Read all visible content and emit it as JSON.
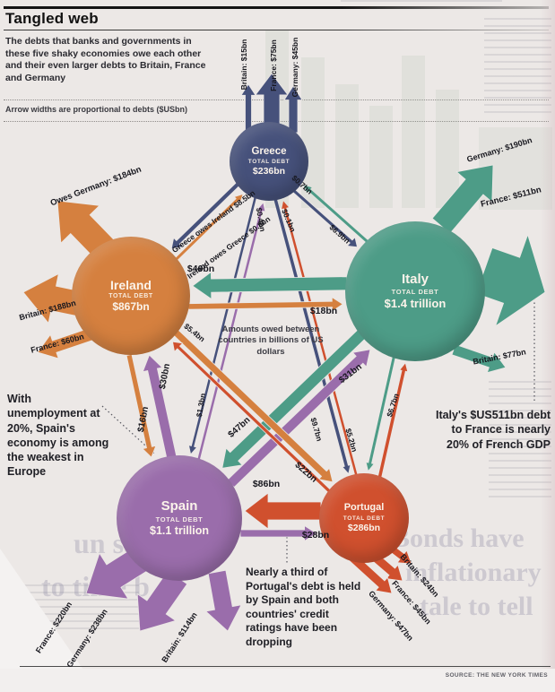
{
  "header": {
    "title": "Tangled web",
    "subtitle": "The debts that banks and governments in these five shaky economies owe each other and their even larger debts to Britain, France and Germany",
    "note": "Arrow widths are proportional to debts ($USbn)"
  },
  "center_note": "Amounts owed between countries in billions of US dollars",
  "annotations": {
    "spain": "With unemployment at 20%, Spain's economy is among the weakest in Europe",
    "italy": "Italy's $US511bn debt to France is nearly 20% of French GDP",
    "portugal": "Nearly a third of Portugal's debt is held by Spain and both countries' credit ratings have been dropping"
  },
  "source": "SOURCE: THE NEW YORK TIMES",
  "colors": {
    "greece": "#46517b",
    "ireland": "#d5803f",
    "italy": "#4d9c87",
    "spain": "#9a6dab",
    "portugal": "#d0502e",
    "paper": "#ece8e6"
  },
  "nodes": [
    {
      "id": "greece",
      "name": "Greece",
      "debt_label": "TOTAL DEBT",
      "total": "$236bn"
    },
    {
      "id": "ireland",
      "name": "Ireland",
      "debt_label": "TOTAL DEBT",
      "total": "$867bn"
    },
    {
      "id": "italy",
      "name": "Italy",
      "debt_label": "TOTAL DEBT",
      "total": "$1.4 trillion"
    },
    {
      "id": "spain",
      "name": "Spain",
      "debt_label": "TOTAL DEBT",
      "total": "$1.1 trillion"
    },
    {
      "id": "portugal",
      "name": "Portugal",
      "debt_label": "TOTAL DEBT",
      "total": "$286bn"
    }
  ],
  "external_debts": [
    {
      "from": "greece",
      "to": "britain",
      "label": "Britain: $15bn"
    },
    {
      "from": "greece",
      "to": "france",
      "label": "France: $75bn"
    },
    {
      "from": "greece",
      "to": "germany",
      "label": "Germany: $45bn"
    },
    {
      "from": "ireland",
      "to": "germany",
      "label": "Owes Germany: $184bn"
    },
    {
      "from": "ireland",
      "to": "britain",
      "label": "Britain: $188bn"
    },
    {
      "from": "ireland",
      "to": "france",
      "label": "France: $60bn"
    },
    {
      "from": "italy",
      "to": "germany",
      "label": "Germany: $190bn"
    },
    {
      "from": "italy",
      "to": "france",
      "label": "France: $511bn"
    },
    {
      "from": "italy",
      "to": "britain",
      "label": "Britain: $77bn"
    },
    {
      "from": "spain",
      "to": "france",
      "label": "France: $220bn"
    },
    {
      "from": "spain",
      "to": "germany",
      "label": "Germany: $238bn"
    },
    {
      "from": "spain",
      "to": "britain",
      "label": "Britain: $114bn"
    },
    {
      "from": "portugal",
      "to": "britain",
      "label": "Britain: $24bn"
    },
    {
      "from": "portugal",
      "to": "france",
      "label": "France: $45bn"
    },
    {
      "from": "portugal",
      "to": "germany",
      "label": "Germany: $47bn"
    }
  ],
  "internal_debts": [
    {
      "from": "greece",
      "to": "ireland",
      "label": "Greece owes Ireland $8.5bn"
    },
    {
      "from": "ireland",
      "to": "greece",
      "label": "Ireland owes Greece $0.8bn"
    },
    {
      "from": "greece",
      "to": "italy",
      "label": "$6.9bn"
    },
    {
      "from": "italy",
      "to": "greece",
      "label": "$0.7bn"
    },
    {
      "from": "greece",
      "to": "spain",
      "label": "$1.3bn"
    },
    {
      "from": "spain",
      "to": "greece",
      "label": "$0.4bn"
    },
    {
      "from": "greece",
      "to": "portugal",
      "label": "$9.7bn"
    },
    {
      "from": "portugal",
      "to": "greece",
      "label": "$0.1bn"
    },
    {
      "from": "italy",
      "to": "ireland",
      "label": "$46bn"
    },
    {
      "from": "ireland",
      "to": "italy",
      "label": "$18bn"
    },
    {
      "from": "spain",
      "to": "ireland",
      "label": "$30bn"
    },
    {
      "from": "ireland",
      "to": "spain",
      "label": "$16bn"
    },
    {
      "from": "italy",
      "to": "spain",
      "label": "$47bn"
    },
    {
      "from": "spain",
      "to": "italy",
      "label": "$31bn"
    },
    {
      "from": "ireland",
      "to": "portugal",
      "label": "$22bn"
    },
    {
      "from": "portugal",
      "to": "ireland",
      "label": "$5.4bn"
    },
    {
      "from": "italy",
      "to": "portugal",
      "label": "$5.2bn"
    },
    {
      "from": "portugal",
      "to": "italy",
      "label": "$6.7bn"
    },
    {
      "from": "portugal",
      "to": "spain",
      "label": "$86bn"
    },
    {
      "from": "spain",
      "to": "portugal",
      "label": "$28bn"
    }
  ],
  "ghost_headlines": {
    "right1": "Bonds have",
    "right2": "inflationary",
    "right3": "tale to tell",
    "left1": "un safe",
    "left2": "to time b"
  }
}
